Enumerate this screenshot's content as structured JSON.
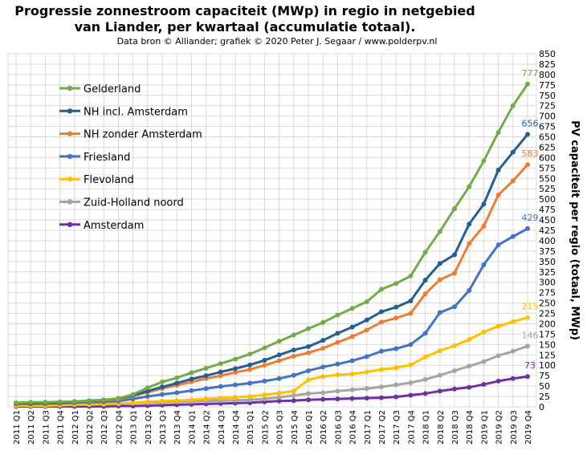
{
  "chart_data": {
    "type": "line",
    "title_lines": [
      "Progressie zonnestroom capaciteit (MWp) in regio in netgebied",
      "van Liander, per kwartaal (accumulatie totaal)."
    ],
    "subtitle": "Data bron © Alliander; grafiek © 2020 Peter J. Segaar / www.polderpv.nl",
    "ylabel": "PV capaciteit per regio (totaal, MWp)",
    "ylim": [
      0,
      850
    ],
    "y_ticks": [
      0,
      25,
      50,
      75,
      100,
      125,
      150,
      175,
      200,
      225,
      250,
      275,
      300,
      325,
      350,
      375,
      400,
      425,
      450,
      475,
      500,
      525,
      550,
      575,
      600,
      625,
      650,
      675,
      700,
      725,
      750,
      775,
      800,
      825,
      850
    ],
    "grid": true,
    "legend_position": "top-left",
    "categories": [
      "2011 Q1",
      "2011 Q2",
      "2011 Q3",
      "2011 Q4",
      "2012 Q1",
      "2012 Q2",
      "2012 Q3",
      "2012 Q4",
      "2013 Q1",
      "2013 Q2",
      "2013 Q3",
      "2013 Q4",
      "2014 Q1",
      "2014 Q2",
      "2014 Q3",
      "2014 Q4",
      "2015 Q1",
      "2015 Q2",
      "2015 Q3",
      "2015 Q4",
      "2016 Q1",
      "2016 Q2",
      "2016 Q3",
      "2016 Q4",
      "2017 Q1",
      "2017 Q2",
      "2017 Q3",
      "2017 Q4",
      "2018 Q1",
      "2018 Q2",
      "2018 Q3",
      "2018 Q4",
      "2019 Q1",
      "2019 Q2",
      "2019 Q3",
      "2019 Q4"
    ],
    "series": [
      {
        "name": "Gelderland",
        "color": "#70ad47",
        "end_label": "777",
        "values": [
          10,
          11,
          11,
          12,
          13,
          15,
          17,
          20,
          30,
          46,
          60,
          70,
          82,
          93,
          104,
          115,
          127,
          142,
          158,
          173,
          188,
          203,
          221,
          237,
          253,
          283,
          297,
          315,
          372,
          422,
          477,
          530,
          592,
          661,
          725,
          777
        ]
      },
      {
        "name": "NH incl. Amsterdam",
        "color": "#255e91",
        "end_label": "656",
        "values": [
          8,
          8,
          9,
          10,
          12,
          14,
          16,
          20,
          28,
          38,
          48,
          57,
          67,
          75,
          84,
          92,
          101,
          112,
          125,
          137,
          145,
          160,
          177,
          192,
          209,
          229,
          240,
          255,
          305,
          345,
          366,
          440,
          488,
          570,
          613,
          656
        ]
      },
      {
        "name": "NH zonder Amsterdam",
        "color": "#ed7d31",
        "end_label": "583",
        "values": [
          8,
          8,
          9,
          10,
          11,
          13,
          15,
          18,
          26,
          35,
          44,
          52,
          60,
          68,
          75,
          83,
          90,
          100,
          111,
          122,
          130,
          141,
          155,
          169,
          185,
          204,
          214,
          225,
          272,
          306,
          322,
          393,
          435,
          510,
          544,
          583
        ]
      },
      {
        "name": "Friesland",
        "color": "#4472c4",
        "end_label": "429",
        "values": [
          8,
          8,
          8,
          9,
          10,
          11,
          12,
          14,
          19,
          25,
          30,
          34,
          39,
          44,
          49,
          53,
          57,
          62,
          68,
          76,
          87,
          96,
          103,
          111,
          121,
          134,
          140,
          150,
          177,
          227,
          241,
          280,
          342,
          390,
          410,
          429
        ]
      },
      {
        "name": "Flevoland",
        "color": "#ffc000",
        "end_label": "215",
        "values": [
          3,
          3,
          3,
          4,
          5,
          6,
          7,
          8,
          10,
          12,
          14,
          15,
          17,
          19,
          21,
          23,
          25,
          29,
          33,
          38,
          65,
          73,
          77,
          79,
          84,
          90,
          94,
          101,
          120,
          135,
          147,
          162,
          180,
          194,
          205,
          215
        ]
      },
      {
        "name": "Zuid-Holland noord",
        "color": "#a5a5a5",
        "end_label": "146",
        "values": [
          3,
          3,
          3,
          4,
          5,
          5,
          6,
          7,
          9,
          10,
          11,
          12,
          13,
          14,
          15,
          16,
          17,
          19,
          23,
          27,
          32,
          34,
          38,
          41,
          44,
          48,
          53,
          58,
          66,
          76,
          87,
          98,
          109,
          123,
          134,
          146
        ]
      },
      {
        "name": "Amsterdam",
        "color": "#7030a0",
        "end_label": "73",
        "values": [
          1,
          1,
          1,
          1,
          1,
          1,
          1,
          2,
          2,
          3,
          4,
          5,
          6,
          7,
          8,
          9,
          10,
          12,
          14,
          15,
          17,
          18,
          19,
          20,
          21,
          22,
          24,
          28,
          32,
          38,
          43,
          47,
          54,
          62,
          68,
          73
        ]
      }
    ]
  }
}
